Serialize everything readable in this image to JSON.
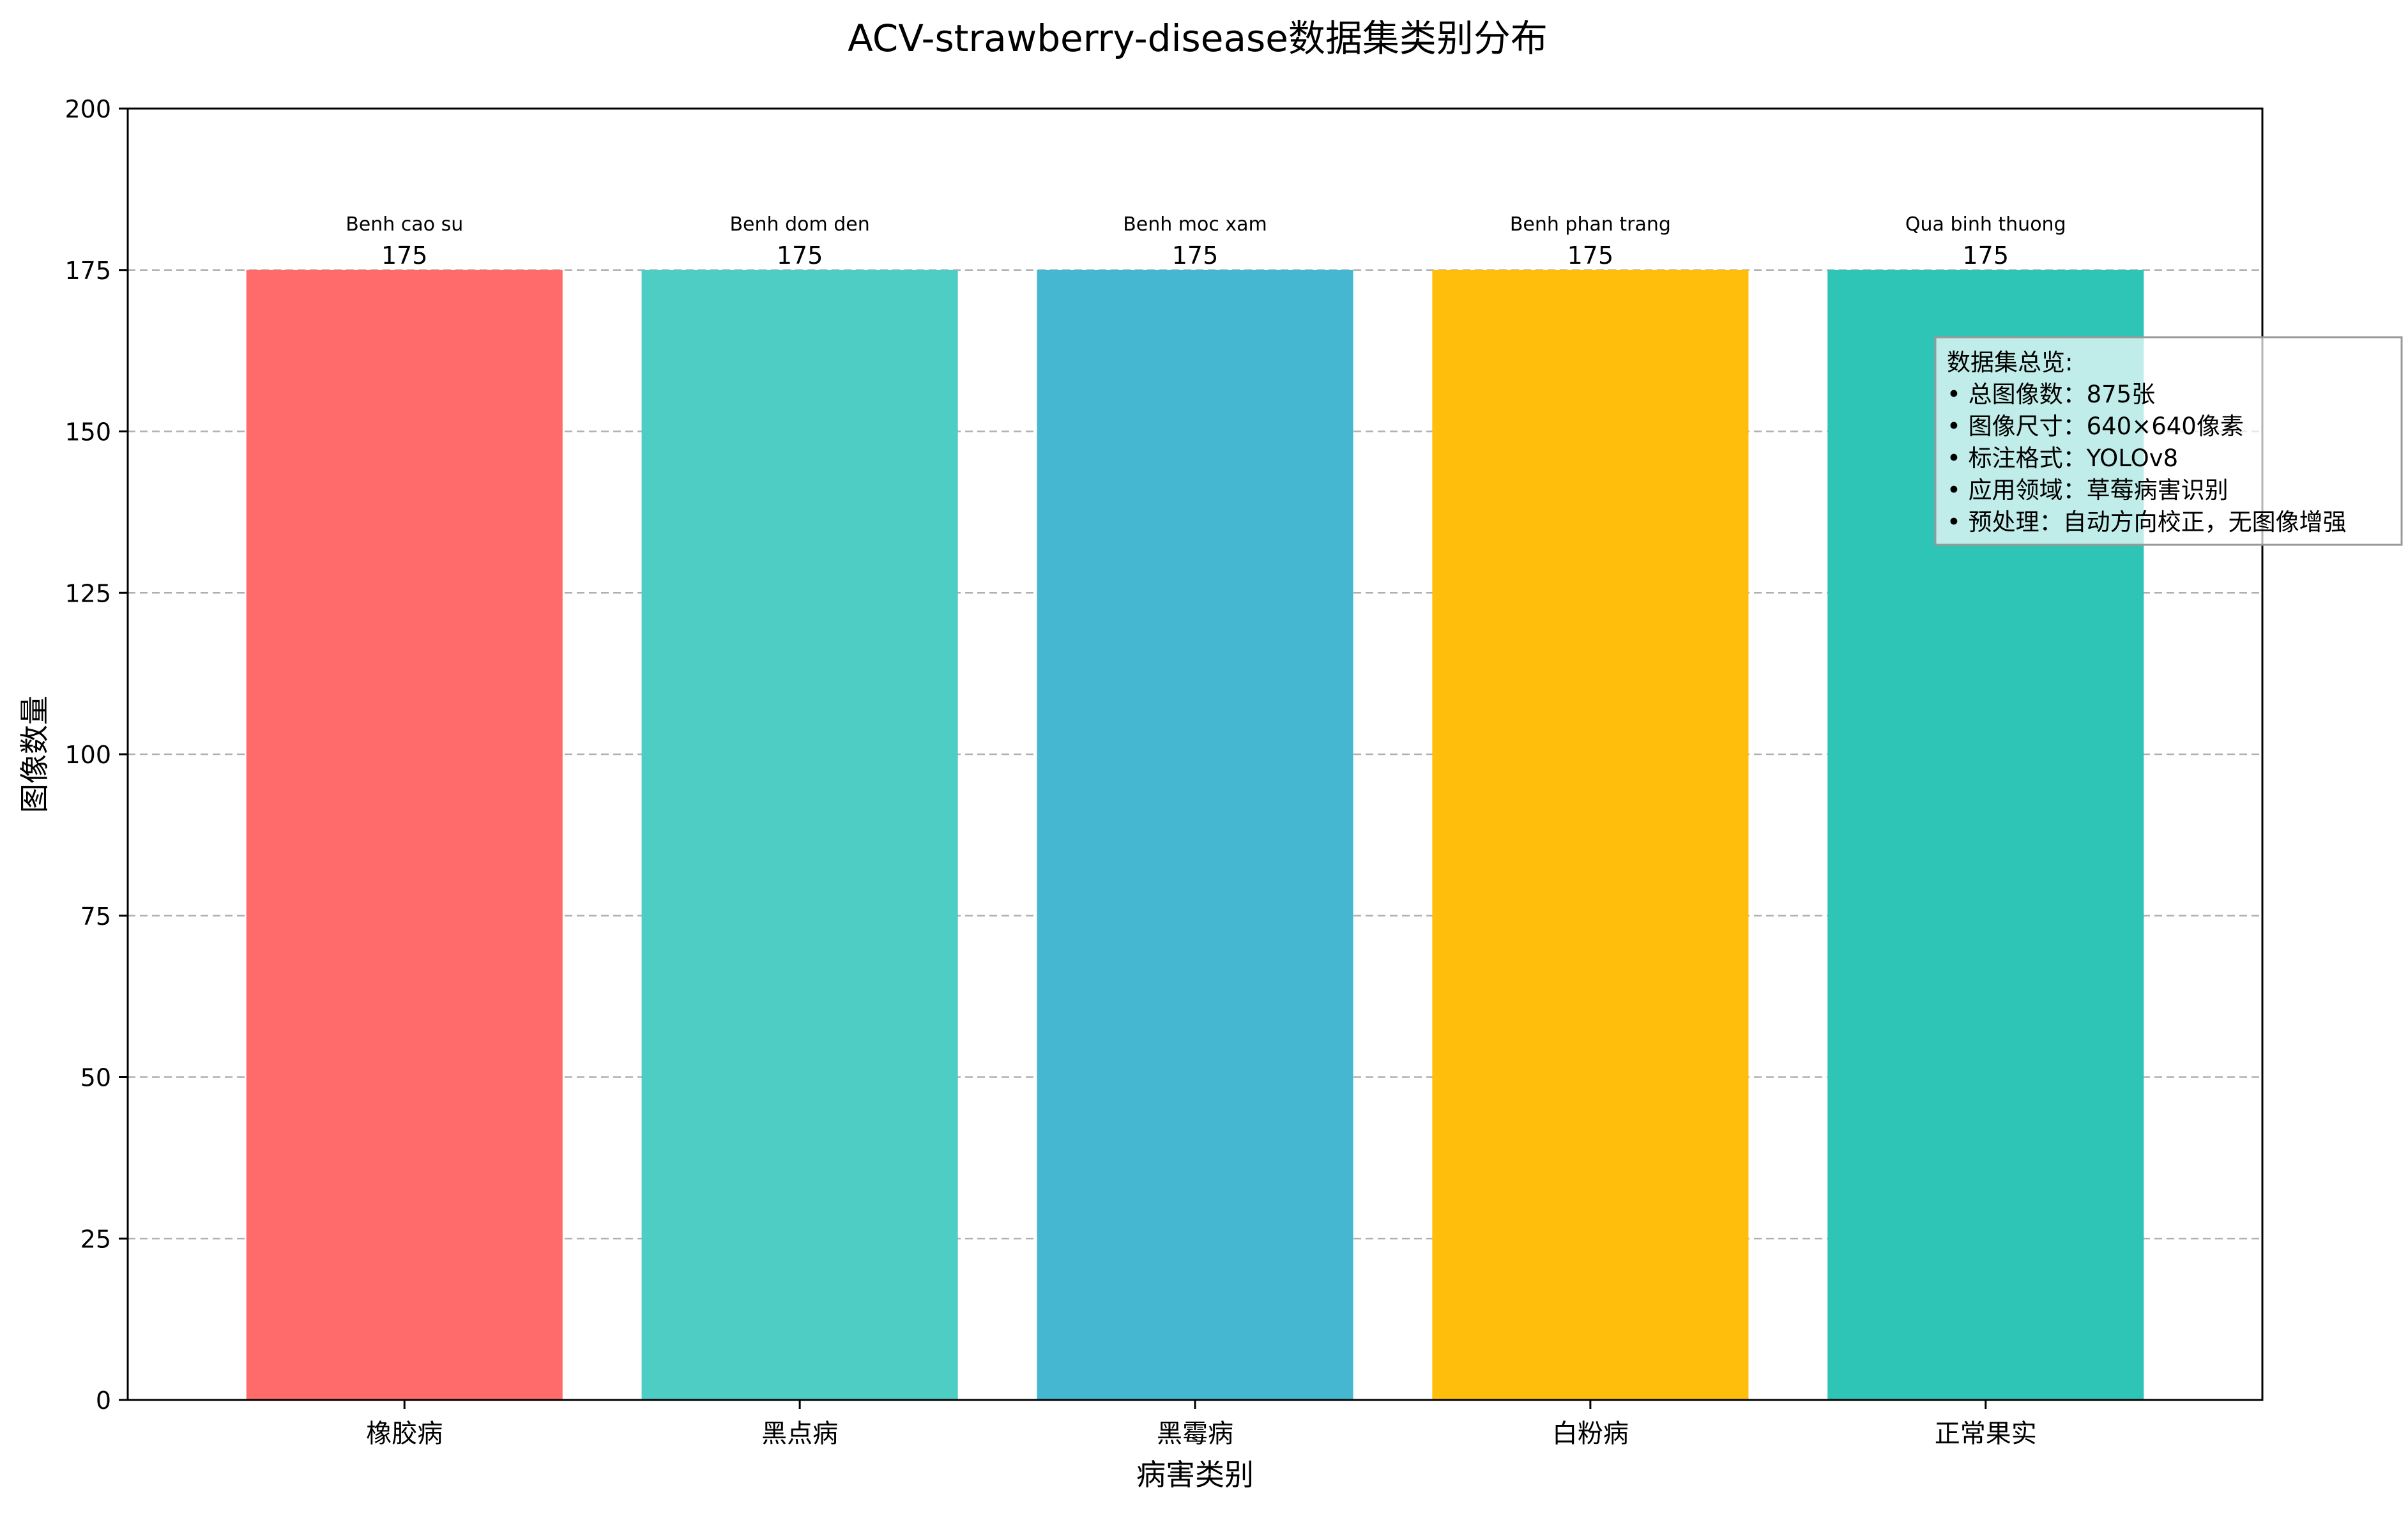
{
  "chart_data": {
    "type": "bar",
    "title": "ACV-strawberry-disease数据集类别分布",
    "xlabel": "病害类别",
    "ylabel": "图像数量",
    "categories": [
      "橡胶病",
      "黑点病",
      "黑霉病",
      "白粉病",
      "正常果实"
    ],
    "bar_top_labels": [
      "Benh cao su",
      "Benh dom den",
      "Benh moc xam",
      "Benh phan trang",
      "Qua binh thuong"
    ],
    "values": [
      175,
      175,
      175,
      175,
      175
    ],
    "colors": [
      "#FF6B6B",
      "#4ECDC4",
      "#45B7D1",
      "#FFBE0B",
      "#2EC4B6"
    ],
    "ylim": [
      0,
      200
    ],
    "yticks": [
      0,
      25,
      50,
      75,
      100,
      125,
      150,
      175,
      200
    ],
    "grid": "y-dashed",
    "info_box": {
      "placement": "right",
      "lines": [
        "数据集总览:",
        "• 总图像数：875张",
        "• 图像尺寸：640×640像素",
        "• 标注格式：YOLOv8",
        "• 应用领域：草莓病害识别",
        "• 预处理：自动方向校正，无图像增强"
      ]
    }
  }
}
